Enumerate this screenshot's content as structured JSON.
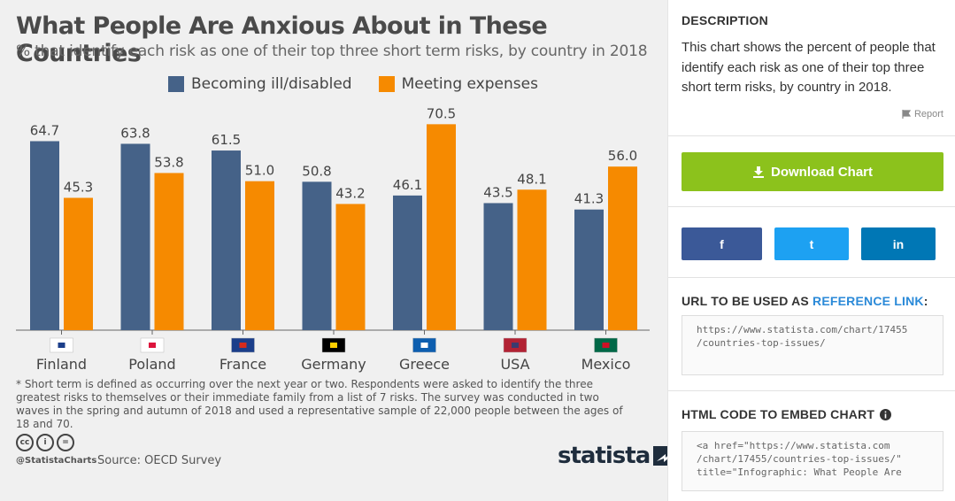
{
  "infographic": {
    "title": "What People Are Anxious About in These Countries",
    "subtitle": "% that identify each risk as one of their top three short term risks, by country in 2018",
    "footnote": "* Short term is defined as occurring over the next year or two. Respondents were asked to identify the three greatest risks to themselves or their immediate family from a list of 7 risks. The survey was conducted in two waves in the spring and autumn of 2018 and used a representative sample of 22,000 people between the ages of 18 and 70.",
    "handle": "@StatistaCharts",
    "source": "Source: OECD Survey",
    "brand": "statista",
    "cc_labels": [
      "cc",
      "i",
      "="
    ]
  },
  "chart_data": {
    "type": "bar",
    "categories": [
      "Finland",
      "Poland",
      "France",
      "Germany",
      "Greece",
      "USA",
      "Mexico"
    ],
    "series": [
      {
        "name": "Becoming ill/disabled",
        "color": "#456288",
        "values": [
          64.7,
          63.8,
          61.5,
          50.8,
          46.1,
          43.5,
          41.3
        ]
      },
      {
        "name": "Meeting expenses",
        "color": "#f68a00",
        "values": [
          45.3,
          53.8,
          51.0,
          43.2,
          70.5,
          48.1,
          56.0
        ]
      }
    ],
    "ylim": [
      0,
      80
    ],
    "grid": false,
    "legend_position": "top-center",
    "data_labels": true
  },
  "sidebar": {
    "description_heading": "DESCRIPTION",
    "description_text": "This chart shows the percent of people that identify each risk as one of their top three short term risks, by country in 2018.",
    "report_label": "Report",
    "download_label": "Download Chart",
    "share": [
      {
        "name": "facebook",
        "glyph": "f",
        "color": "#3b5998"
      },
      {
        "name": "twitter",
        "glyph": "t",
        "color": "#1da1f2"
      },
      {
        "name": "linkedin",
        "glyph": "in",
        "color": "#0077b5"
      }
    ],
    "url_heading_prefix": "URL TO BE USED AS ",
    "url_heading_link": "REFERENCE LINK",
    "url_heading_suffix": ":",
    "url_lines": [
      "https://www.statista.com/chart/17455",
      "/countries-top-issues/"
    ],
    "embed_heading": "HTML CODE TO EMBED CHART",
    "embed_lines": [
      "<a href=\"https://www.statista.com",
      "/chart/17455/countries-top-issues/\"",
      "title=\"Infographic: What People Are"
    ]
  }
}
